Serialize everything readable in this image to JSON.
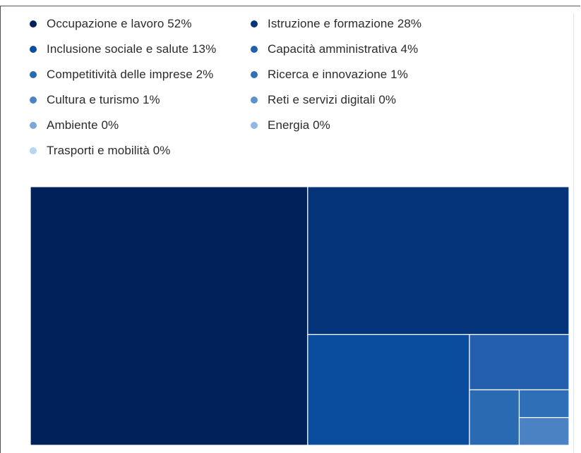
{
  "chart_data": {
    "type": "treemap",
    "title": "",
    "series": [
      {
        "name": "Occupazione e lavoro",
        "value": 52,
        "label": "Occupazione e lavoro 52%",
        "color": "#002159"
      },
      {
        "name": "Istruzione e formazione",
        "value": 28,
        "label": "Istruzione e formazione 28%",
        "color": "#05347a"
      },
      {
        "name": "Inclusione sociale e salute",
        "value": 13,
        "label": "Inclusione sociale e salute 13%",
        "color": "#0a4d9e"
      },
      {
        "name": "Capacità amministrativa",
        "value": 4,
        "label": "Capacità amministrativa 4%",
        "color": "#235fad"
      },
      {
        "name": "Competitività delle imprese",
        "value": 2,
        "label": "Competitività delle imprese 2%",
        "color": "#2a6ab3"
      },
      {
        "name": "Ricerca e innovazione",
        "value": 1,
        "label": "Ricerca e innovazione 1%",
        "color": "#2f6fb7"
      },
      {
        "name": "Cultura e turismo",
        "value": 1,
        "label": "Cultura e turismo 1%",
        "color": "#4a82c4"
      },
      {
        "name": "Reti e servizi digitali",
        "value": 0,
        "label": "Reti e servizi digitali 0%",
        "color": "#5b92cf"
      },
      {
        "name": "Ambiente",
        "value": 0,
        "label": "Ambiente 0%",
        "color": "#7aa8da"
      },
      {
        "name": "Energia",
        "value": 0,
        "label": "Energia 0%",
        "color": "#8fb8e2"
      },
      {
        "name": "Trasporti e mobilità",
        "value": 0,
        "label": "Trasporti e mobilità 0%",
        "color": "#b3d6f2"
      }
    ],
    "legend_position": "top",
    "legend_columns": 2
  }
}
